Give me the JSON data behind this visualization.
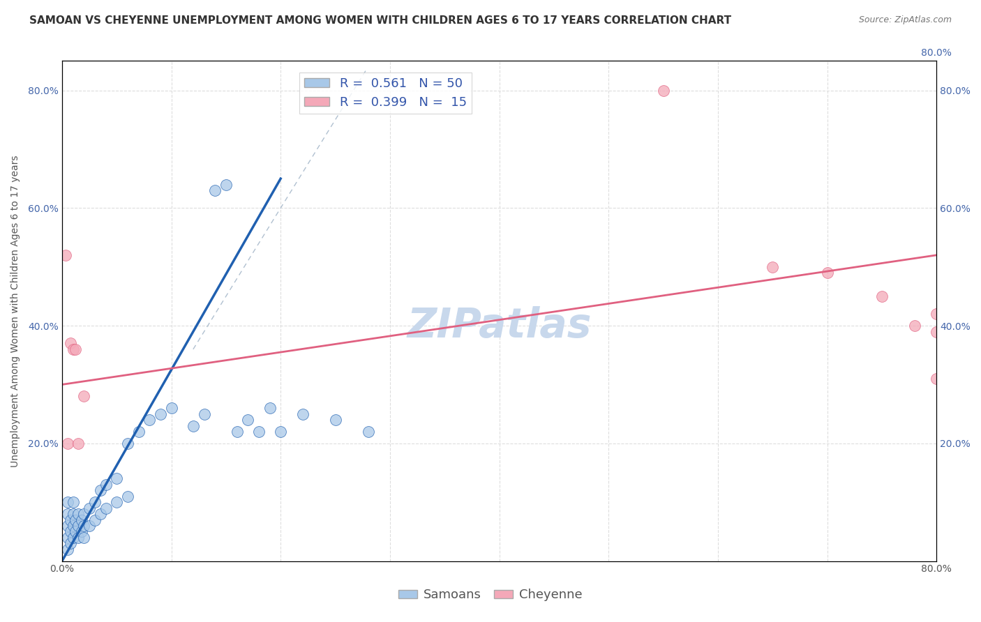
{
  "title": "SAMOAN VS CHEYENNE UNEMPLOYMENT AMONG WOMEN WITH CHILDREN AGES 6 TO 17 YEARS CORRELATION CHART",
  "source": "Source: ZipAtlas.com",
  "ylabel": "Unemployment Among Women with Children Ages 6 to 17 years",
  "xlabel": "",
  "xlim": [
    0,
    0.8
  ],
  "ylim": [
    0,
    0.85
  ],
  "xtick_positions": [
    0.0,
    0.1,
    0.2,
    0.3,
    0.4,
    0.5,
    0.6,
    0.7,
    0.8
  ],
  "ytick_positions": [
    0.0,
    0.2,
    0.4,
    0.6,
    0.8
  ],
  "watermark": "ZIPatlas",
  "legend_R_samoan": "0.561",
  "legend_N_samoan": "50",
  "legend_R_cheyenne": "0.399",
  "legend_N_cheyenne": "15",
  "samoan_color": "#A8C8E8",
  "cheyenne_color": "#F4A8B8",
  "samoan_line_color": "#2060B0",
  "cheyenne_line_color": "#E06080",
  "ref_line_color": "#B0C0D0",
  "samoan_x": [
    0.005,
    0.005,
    0.005,
    0.005,
    0.005,
    0.008,
    0.008,
    0.008,
    0.01,
    0.01,
    0.01,
    0.01,
    0.012,
    0.012,
    0.015,
    0.015,
    0.015,
    0.018,
    0.018,
    0.02,
    0.02,
    0.02,
    0.025,
    0.025,
    0.03,
    0.03,
    0.035,
    0.035,
    0.04,
    0.04,
    0.05,
    0.05,
    0.06,
    0.06,
    0.07,
    0.08,
    0.09,
    0.1,
    0.12,
    0.13,
    0.14,
    0.15,
    0.16,
    0.17,
    0.18,
    0.19,
    0.2,
    0.22,
    0.25,
    0.28
  ],
  "samoan_y": [
    0.02,
    0.04,
    0.06,
    0.08,
    0.1,
    0.03,
    0.05,
    0.07,
    0.04,
    0.06,
    0.08,
    0.1,
    0.05,
    0.07,
    0.04,
    0.06,
    0.08,
    0.05,
    0.07,
    0.04,
    0.06,
    0.08,
    0.06,
    0.09,
    0.07,
    0.1,
    0.08,
    0.12,
    0.09,
    0.13,
    0.1,
    0.14,
    0.11,
    0.2,
    0.22,
    0.24,
    0.25,
    0.26,
    0.23,
    0.25,
    0.63,
    0.64,
    0.22,
    0.24,
    0.22,
    0.26,
    0.22,
    0.25,
    0.24,
    0.22
  ],
  "cheyenne_x": [
    0.003,
    0.005,
    0.008,
    0.01,
    0.012,
    0.015,
    0.02,
    0.55,
    0.65,
    0.7,
    0.75,
    0.78,
    0.8,
    0.8,
    0.8
  ],
  "cheyenne_y": [
    0.52,
    0.2,
    0.37,
    0.36,
    0.36,
    0.2,
    0.28,
    0.8,
    0.5,
    0.49,
    0.45,
    0.4,
    0.39,
    0.31,
    0.42
  ],
  "samoan_line_x": [
    0.0,
    0.2
  ],
  "samoan_line_y": [
    0.0,
    0.65
  ],
  "cheyenne_line_x": [
    0.0,
    0.8
  ],
  "cheyenne_line_y": [
    0.3,
    0.52
  ],
  "title_fontsize": 11,
  "source_fontsize": 9,
  "label_fontsize": 10,
  "tick_fontsize": 10,
  "legend_fontsize": 13,
  "watermark_fontsize": 42,
  "watermark_color": "#C8D8EC",
  "background_color": "#FFFFFF",
  "grid_color": "#DDDDDD"
}
